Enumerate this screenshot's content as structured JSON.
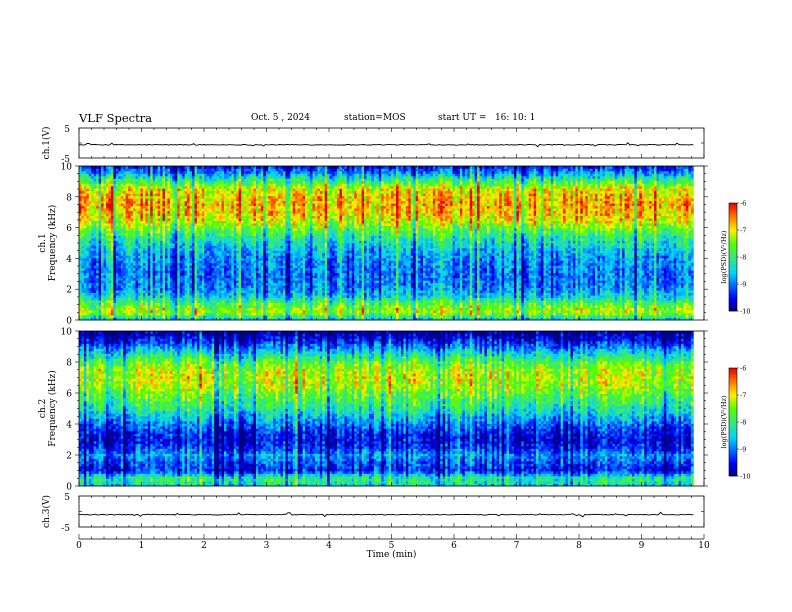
{
  "header": {
    "title": "VLF Spectra",
    "date": "Oct. 5 , 2024",
    "station": "station=MOS",
    "start_ut": "start UT =   16: 10: 1"
  },
  "chart_data": [
    {
      "type": "line",
      "panel": "ch1-waveform",
      "ylabel": "ch.1(V)",
      "ylim": [
        -5,
        5
      ],
      "yticks": [
        "5",
        "-5"
      ],
      "xlim": [
        0,
        10
      ],
      "series": [
        {
          "values": [
            -0.6,
            -0.6
          ]
        }
      ]
    },
    {
      "type": "heatmap",
      "panel": "ch1-spectrogram",
      "ylabel": "ch.1\nFrequency (kHz)",
      "ylim": [
        0,
        10
      ],
      "yticks": [
        "0",
        "2",
        "4",
        "6",
        "8",
        "10"
      ],
      "xlim": [
        0,
        9.83
      ],
      "colorbar": {
        "label": "log(PSD)(V²/Hz)",
        "range": [
          -10,
          -6
        ],
        "ticks": [
          "-6",
          "-7",
          "-8",
          "-9",
          "-10"
        ]
      },
      "profile_freq_khz": [
        0,
        0.5,
        1,
        1.5,
        2,
        2.5,
        3,
        3.5,
        4,
        4.5,
        5,
        5.5,
        6,
        6.5,
        7,
        7.5,
        8,
        8.5,
        9,
        9.5,
        10
      ],
      "profile_logpsd": [
        -8.6,
        -7.2,
        -7.6,
        -8.4,
        -8.8,
        -8.9,
        -9.0,
        -8.9,
        -8.8,
        -8.6,
        -8.3,
        -8.0,
        -7.5,
        -7.0,
        -6.8,
        -6.7,
        -6.8,
        -7.0,
        -7.8,
        -8.7,
        -9.5
      ]
    },
    {
      "type": "heatmap",
      "panel": "ch2-spectrogram",
      "ylabel": "ch.2\nFrequency (kHz)",
      "ylim": [
        0,
        10
      ],
      "yticks": [
        "0",
        "2",
        "4",
        "6",
        "8",
        "10"
      ],
      "xlim": [
        0,
        9.83
      ],
      "colorbar": {
        "label": "log(PSD)(V²/Hz)",
        "range": [
          -10,
          -6
        ],
        "ticks": [
          "-6",
          "-7",
          "-8",
          "-9",
          "-10"
        ]
      },
      "profile_freq_khz": [
        0,
        0.5,
        1,
        1.5,
        2,
        2.5,
        3,
        3.5,
        4,
        4.5,
        5,
        5.5,
        6,
        6.5,
        7,
        7.5,
        8,
        8.5,
        9,
        9.5,
        10
      ],
      "profile_logpsd": [
        -8.4,
        -8.0,
        -9.4,
        -9.2,
        -8.8,
        -9.4,
        -9.6,
        -9.4,
        -9.0,
        -8.6,
        -8.2,
        -7.9,
        -7.6,
        -7.3,
        -7.2,
        -7.3,
        -7.7,
        -8.3,
        -9.0,
        -9.6,
        -10.0
      ]
    },
    {
      "type": "line",
      "panel": "ch3-waveform",
      "ylabel": "ch.3(V)",
      "ylim": [
        -5,
        5
      ],
      "yticks": [
        "5",
        "-5"
      ],
      "xlim": [
        0,
        10
      ],
      "series": [
        {
          "values": [
            -1.0,
            -1.0
          ]
        }
      ]
    }
  ],
  "xaxis": {
    "label": "Time (min)",
    "range": [
      0,
      10
    ],
    "ticks": [
      "0",
      "1",
      "2",
      "3",
      "4",
      "5",
      "6",
      "7",
      "8",
      "9",
      "10"
    ]
  }
}
